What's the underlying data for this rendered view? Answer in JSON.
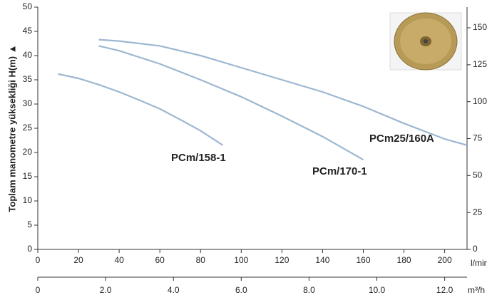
{
  "chart_data": {
    "type": "line",
    "ylabel": "Toplam manometre yüksekliği  H(m)  ▲",
    "xlabel": "l/min",
    "x2label": "m³/h",
    "xlim": [
      0,
      211
    ],
    "xticks": [
      0,
      20,
      40,
      60,
      80,
      100,
      120,
      140,
      160,
      180,
      200
    ],
    "x2lim": [
      0,
      12.66
    ],
    "x2ticks": [
      0,
      {
        "value": 2,
        "label": "2.0"
      },
      {
        "value": 4,
        "label": "4.0"
      },
      {
        "value": 6,
        "label": "6.0"
      },
      {
        "value": 8,
        "label": "8.0"
      },
      {
        "value": 10,
        "label": "10.0"
      },
      {
        "value": 12,
        "label": "12.0"
      }
    ],
    "ylim": [
      0,
      50
    ],
    "yticks": [
      0,
      5,
      10,
      15,
      20,
      25,
      30,
      35,
      40,
      45,
      50
    ],
    "y2lim": [
      0,
      164
    ],
    "y2ticks": [
      0,
      25,
      50,
      75,
      100,
      125,
      150
    ],
    "label_color": "#1a8c8a",
    "series": [
      {
        "name": "PCm/158-1",
        "color": "#9db7d2",
        "x": [
          10,
          20,
          30,
          40,
          50,
          60,
          70,
          80,
          91
        ],
        "values": [
          36.2,
          35.3,
          34,
          32.5,
          30.8,
          29,
          26.8,
          24.5,
          21.5
        ]
      },
      {
        "name": "PCm/170-1",
        "color": "#9db7d2",
        "x": [
          30,
          40,
          60,
          80,
          100,
          120,
          140,
          160
        ],
        "values": [
          42,
          41,
          38.3,
          35,
          31.5,
          27.5,
          23.3,
          18.5
        ]
      },
      {
        "name": "PCm25/160A",
        "color": "#9db7d2",
        "x": [
          30,
          40,
          60,
          80,
          100,
          120,
          140,
          160,
          180,
          200,
          211
        ],
        "values": [
          43.3,
          43,
          42,
          40,
          37.5,
          35,
          32.5,
          29.5,
          26,
          22.8,
          21.5
        ]
      }
    ]
  }
}
